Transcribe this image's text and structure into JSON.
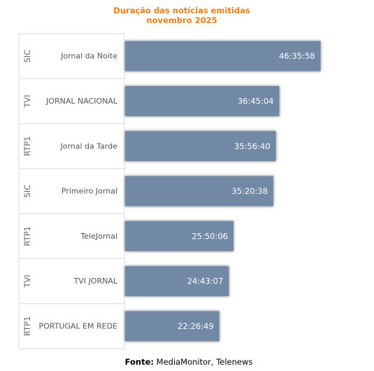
{
  "chart_data": {
    "type": "bar",
    "orientation": "horizontal",
    "title_line1": "Duração das notícias emitidas",
    "title_line2": "novembro 2025",
    "categories": [
      {
        "channel": "SIC",
        "program": "Jornal da Noite"
      },
      {
        "channel": "TVI",
        "program": "JORNAL NACIONAL"
      },
      {
        "channel": "RTP1",
        "program": "Jornal da Tarde"
      },
      {
        "channel": "SIC",
        "program": "Primeiro Jornal"
      },
      {
        "channel": "RTP1",
        "program": "TeleJornal"
      },
      {
        "channel": "TVI",
        "program": "TVI JORNAL"
      },
      {
        "channel": "RTP1",
        "program": "PORTUGAL EM REDE"
      }
    ],
    "values": [
      "46:35:58",
      "36:45:04",
      "35:56:40",
      "35:20:38",
      "25:50:06",
      "24:43:07",
      "22:26:49"
    ],
    "bar_color": "#7289a5",
    "title_color": "#f07d19",
    "grid": false
  },
  "source": {
    "label": "Fonte:",
    "text": "MediaMonitor, Telenews"
  }
}
